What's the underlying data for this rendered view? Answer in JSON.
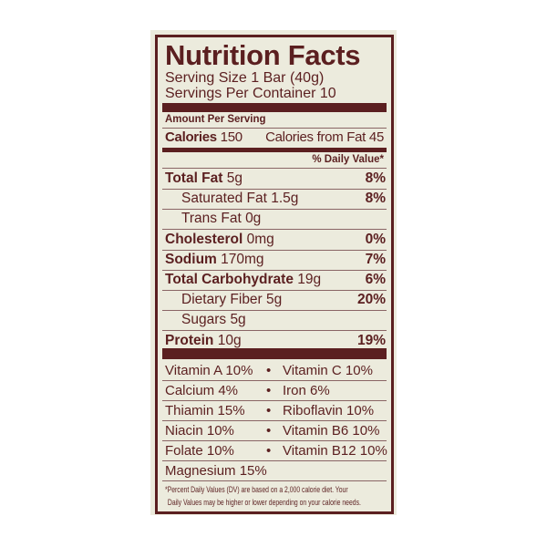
{
  "title": "Nutrition Facts",
  "serving_size": "Serving Size 1 Bar (40g)",
  "servings_per_container": "Servings Per Container 10",
  "amount_per_serving": "Amount Per Serving",
  "calories_label": "Calories",
  "calories_value": "150",
  "calories_from_fat": "Calories from Fat 45",
  "daily_value_header": "% Daily Value*",
  "nutrients": [
    {
      "name": "Total Fat",
      "amount": "5g",
      "dv": "8%",
      "bold": true
    },
    {
      "name": "Saturated Fat",
      "amount": "1.5g",
      "dv": "8%",
      "bold": false
    },
    {
      "name": "Trans Fat",
      "amount": "0g",
      "dv": "",
      "bold": false
    },
    {
      "name": "Cholesterol",
      "amount": "0mg",
      "dv": "0%",
      "bold": true
    },
    {
      "name": "Sodium",
      "amount": "170mg",
      "dv": "7%",
      "bold": true
    },
    {
      "name": "Total Carbohydrate",
      "amount": "19g",
      "dv": "6%",
      "bold": true
    },
    {
      "name": "Dietary Fiber",
      "amount": "5g",
      "dv": "20%",
      "bold": false
    },
    {
      "name": "Sugars",
      "amount": "5g",
      "dv": "",
      "bold": false
    },
    {
      "name": "Protein",
      "amount": "10g",
      "dv": "19%",
      "bold": true
    }
  ],
  "vitamins": [
    [
      "Vitamin A 10%",
      "Vitamin C 10%"
    ],
    [
      "Calcium 4%",
      "Iron 6%"
    ],
    [
      "Thiamin 15%",
      "Riboflavin 10%"
    ],
    [
      "Niacin 10%",
      "Vitamin B6 10%"
    ],
    [
      "Folate 10%",
      "Vitamin B12 10%"
    ],
    [
      "Magnesium 15%",
      ""
    ]
  ],
  "bullet": "•",
  "footnote_line1": "*Percent Daily Values (DV) are based on a 2,000 calorie diet. Your",
  "footnote_line2": "Daily Values may be higher or lower depending on your calorie needs.",
  "colors": {
    "ink": "#5b1f20",
    "background": "#ecebdd"
  }
}
